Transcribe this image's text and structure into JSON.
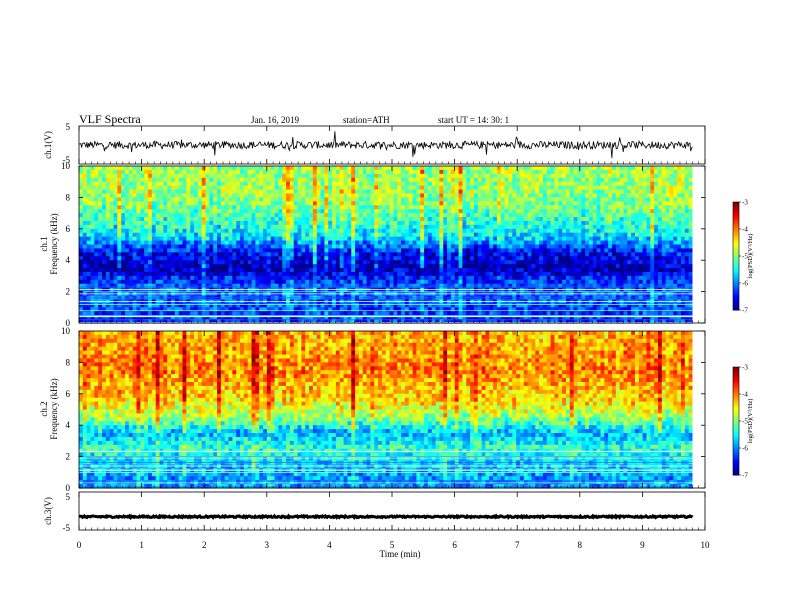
{
  "header": {
    "title": "VLF  Spectra",
    "date": "Jan. 16, 2019",
    "station": "station=ATH",
    "start": "start  UT  =   14: 30: 1"
  },
  "panels": {
    "ch1_signal": {
      "ylabel": "ch.1(V)",
      "yticks": [
        "5",
        "-5"
      ]
    },
    "ch1_spec": {
      "ylabel_top": "ch.1",
      "ylabel_bottom": "Frequency  (kHz)",
      "yticks": [
        "10",
        "8",
        "6",
        "4",
        "2",
        "0"
      ]
    },
    "ch2_spec": {
      "ylabel_top": "ch.2",
      "ylabel_bottom": "Frequency  (kHz)",
      "yticks": [
        "10",
        "8",
        "6",
        "4",
        "2",
        "0"
      ]
    },
    "ch3_signal": {
      "ylabel": "ch.3(V)",
      "yticks": [
        "5",
        "-5"
      ]
    }
  },
  "x_axis": {
    "label": "Time  (min)",
    "ticks": [
      "0",
      "1",
      "2",
      "3",
      "4",
      "5",
      "6",
      "7",
      "8",
      "9",
      "10"
    ]
  },
  "colorbar": {
    "label": "log(PSD)(V²/Hz)",
    "ticks": [
      "-3",
      "-4",
      "-5",
      "-6",
      "-7"
    ]
  },
  "chart_data": [
    {
      "type": "line",
      "title": "VLF  Spectra",
      "ylabel": "ch.1(V)",
      "xlabel": "Time  (min)",
      "xlim": [
        0,
        10
      ],
      "ylim": [
        -5,
        5
      ],
      "data_extent_min": 9.8,
      "series": [
        {
          "values_mean": 0,
          "amplitude_approx": 1
        }
      ]
    },
    {
      "type": "heatmap",
      "ylabel": "ch.1 Frequency  (kHz)",
      "xlim": [
        0,
        10
      ],
      "ylim": [
        0,
        10
      ],
      "zlabel": "log(PSD)(V²/Hz)",
      "zlim": [
        -7,
        -3
      ],
      "profile_freq_khz": [
        0.5,
        1.5,
        2.5,
        3.5,
        4.5,
        5.5,
        6.5,
        7.5,
        8.5,
        9.5
      ],
      "profile_log_psd": [
        -6.3,
        -6.1,
        -6.2,
        -6.8,
        -6.5,
        -5.6,
        -5.3,
        -5.0,
        -4.9,
        -4.9
      ]
    },
    {
      "type": "heatmap",
      "ylabel": "ch.2 Frequency  (kHz)",
      "xlim": [
        0,
        10
      ],
      "ylim": [
        0,
        10
      ],
      "zlabel": "log(PSD)(V²/Hz)",
      "zlim": [
        -7,
        -3
      ],
      "profile_freq_khz": [
        0.5,
        1.5,
        2.5,
        3.5,
        4.5,
        5.5,
        6.5,
        7.5,
        8.5,
        9.5
      ],
      "profile_log_psd": [
        -5.9,
        -5.7,
        -5.3,
        -5.8,
        -4.9,
        -4.4,
        -4.2,
        -4.0,
        -4.1,
        -4.2
      ]
    },
    {
      "type": "line",
      "ylabel": "ch.3(V)",
      "xlim": [
        0,
        10
      ],
      "ylim": [
        -5,
        5
      ],
      "data_extent_min": 9.8,
      "series": [
        {
          "values_mean": -1.5,
          "amplitude_approx": 0.2
        }
      ]
    }
  ]
}
